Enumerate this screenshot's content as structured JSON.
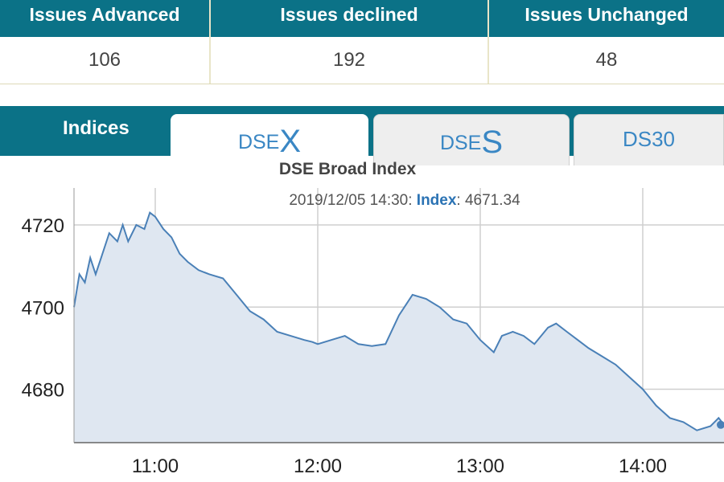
{
  "stats": {
    "headers": [
      "Issues Advanced",
      "Issues declined",
      "Issues Unchanged"
    ],
    "values": [
      "106",
      "192",
      "48"
    ]
  },
  "tabs": {
    "indices_label": "Indices",
    "dsex": {
      "prefix": "DSE",
      "letter": "X"
    },
    "dses": {
      "prefix": "DSE",
      "letter": "S"
    },
    "ds30": "DS30"
  },
  "chart_data": {
    "type": "area",
    "title": "DSE Broad Index",
    "tooltip": {
      "time": "2019/12/05 14:30:",
      "key": "Index",
      "sep": ":",
      "value": "4671.34"
    },
    "xlabel": "",
    "ylabel": "",
    "x_ticks": [
      "11:00",
      "12:00",
      "13:00",
      "14:00"
    ],
    "y_ticks": [
      4680,
      4700,
      4720
    ],
    "ylim": [
      4667,
      4729
    ],
    "xlim": [
      "10:30",
      "14:30"
    ],
    "grid": true,
    "series": [
      {
        "x": [
          "10:30",
          "10:32",
          "10:34",
          "10:36",
          "10:38",
          "10:40",
          "10:43",
          "10:46",
          "10:48",
          "10:50",
          "10:53",
          "10:56",
          "10:58",
          "11:00",
          "11:03",
          "11:06",
          "11:09",
          "11:12",
          "11:16",
          "11:20",
          "11:25",
          "11:30",
          "11:35",
          "11:40",
          "11:45",
          "11:50",
          "11:55",
          "11:58",
          "12:00",
          "12:05",
          "12:10",
          "12:15",
          "12:20",
          "12:25",
          "12:30",
          "12:35",
          "12:40",
          "12:45",
          "12:50",
          "12:55",
          "13:00",
          "13:05",
          "13:08",
          "13:12",
          "13:16",
          "13:20",
          "13:25",
          "13:28",
          "13:32",
          "13:36",
          "13:40",
          "13:45",
          "13:50",
          "13:55",
          "14:00",
          "14:05",
          "14:10",
          "14:15",
          "14:20",
          "14:25",
          "14:28",
          "14:30"
        ],
        "values": [
          4700,
          4708,
          4706,
          4712,
          4708,
          4712,
          4718,
          4716,
          4720,
          4716,
          4720,
          4719,
          4723,
          4722,
          4719,
          4717,
          4713,
          4711,
          4709,
          4708,
          4707,
          4703,
          4699,
          4697,
          4694,
          4693,
          4692,
          4691.5,
          4691,
          4692,
          4693,
          4691,
          4690.5,
          4691,
          4698,
          4703,
          4702,
          4700,
          4697,
          4696,
          4692,
          4689,
          4693,
          4694,
          4693,
          4691,
          4695,
          4696,
          4694,
          4692,
          4690,
          4688,
          4686,
          4683,
          4680,
          4676,
          4673,
          4672,
          4670,
          4671,
          4673,
          4671.34
        ]
      }
    ]
  }
}
